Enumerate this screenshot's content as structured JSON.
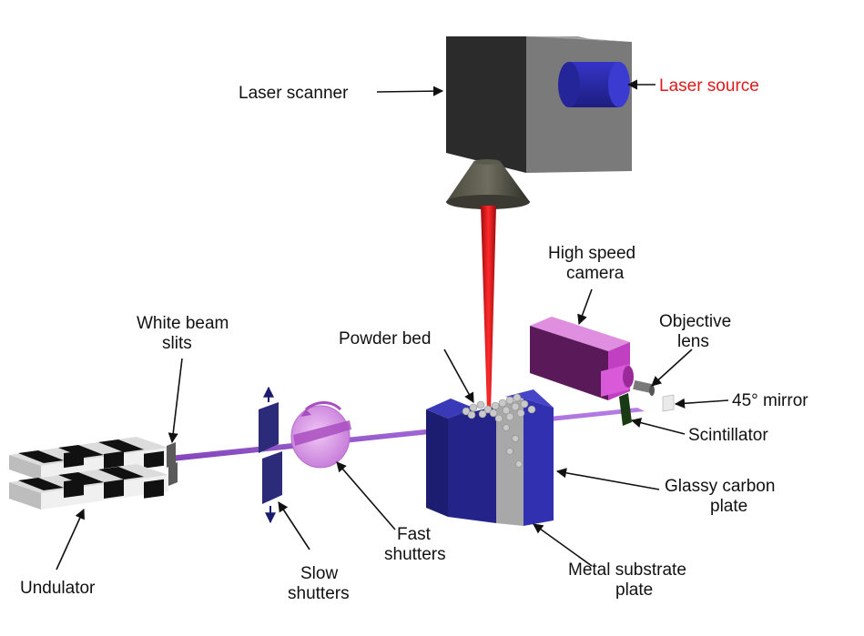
{
  "labels": {
    "laser_scanner": "Laser scanner",
    "laser_source": "Laser source",
    "high_speed_camera_1": "High speed",
    "high_speed_camera_2": "camera",
    "objective_lens_1": "Objective",
    "objective_lens_2": "lens",
    "mirror": "45° mirror",
    "scintillator": "Scintillator",
    "white_beam_slits_1": "White beam",
    "white_beam_slits_2": "slits",
    "powder_bed": "Powder bed",
    "glassy_carbon_1": "Glassy carbon",
    "glassy_carbon_2": "plate",
    "fast_shutters_1": "Fast",
    "fast_shutters_2": "shutters",
    "slow_shutters_1": "Slow",
    "slow_shutters_2": "shutters",
    "metal_substrate_1": "Metal substrate",
    "metal_substrate_2": "plate",
    "undulator": "Undulator"
  },
  "colors": {
    "laser_beam": "#e0151b",
    "xray_beam": "#8a3fd0",
    "scanner_body": "#777777",
    "scanner_dark": "#2a2a2a",
    "laser_source": "#2a2aa8",
    "camera": "#c23fc2",
    "glassy_carbon": "#2e2ea0",
    "metal_substrate": "#a8a8a8",
    "label_highlight": "#e01a1a"
  }
}
